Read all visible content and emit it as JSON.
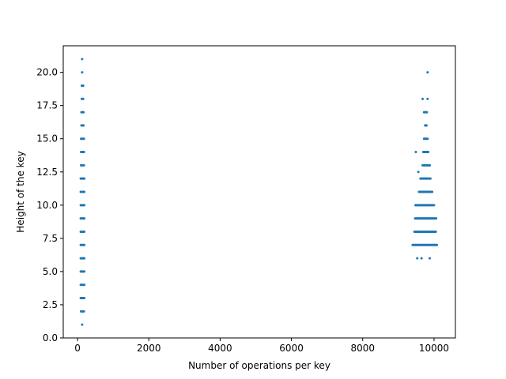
{
  "chart_data": {
    "type": "scatter",
    "xlabel": "Number of operations per key",
    "ylabel": "Height of the key",
    "xlim": [
      -400,
      10600
    ],
    "ylim": [
      0,
      22
    ],
    "xticks": [
      0,
      2000,
      4000,
      6000,
      8000,
      10000
    ],
    "xtick_labels": [
      "0",
      "2000",
      "4000",
      "6000",
      "8000",
      "10000"
    ],
    "yticks": [
      0,
      2.5,
      5,
      7.5,
      10,
      12.5,
      15,
      17.5,
      20
    ],
    "ytick_labels": [
      "0.0",
      "2.5",
      "5.0",
      "7.5",
      "10.0",
      "12.5",
      "15.0",
      "17.5",
      "20.0"
    ],
    "grid": false,
    "point_color": "#1f77b4",
    "series": [
      {
        "clusters": [
          {
            "y": 1,
            "x_min": 130,
            "x_max": 140
          },
          {
            "y": 2,
            "x_min": 100,
            "x_max": 180
          },
          {
            "y": 3,
            "x_min": 90,
            "x_max": 190
          },
          {
            "y": 4,
            "x_min": 90,
            "x_max": 190
          },
          {
            "y": 5,
            "x_min": 90,
            "x_max": 190
          },
          {
            "y": 6,
            "x_min": 90,
            "x_max": 190
          },
          {
            "y": 7,
            "x_min": 90,
            "x_max": 190
          },
          {
            "y": 8,
            "x_min": 90,
            "x_max": 190
          },
          {
            "y": 9,
            "x_min": 90,
            "x_max": 190
          },
          {
            "y": 10,
            "x_min": 90,
            "x_max": 190
          },
          {
            "y": 11,
            "x_min": 90,
            "x_max": 190
          },
          {
            "y": 12,
            "x_min": 90,
            "x_max": 190
          },
          {
            "y": 13,
            "x_min": 100,
            "x_max": 180
          },
          {
            "y": 14,
            "x_min": 100,
            "x_max": 180
          },
          {
            "y": 15,
            "x_min": 100,
            "x_max": 180
          },
          {
            "y": 16,
            "x_min": 110,
            "x_max": 170
          },
          {
            "y": 17,
            "x_min": 110,
            "x_max": 170
          },
          {
            "y": 18,
            "x_min": 120,
            "x_max": 160
          },
          {
            "y": 19,
            "x_min": 120,
            "x_max": 160
          },
          {
            "y": 20,
            "x_min": 130,
            "x_max": 150
          },
          {
            "y": 21,
            "x_min": 130,
            "x_max": 150
          },
          {
            "y": 6,
            "x_min": 9530,
            "x_max": 9530
          },
          {
            "y": 6,
            "x_min": 9650,
            "x_max": 9650
          },
          {
            "y": 6,
            "x_min": 9880,
            "x_max": 9880
          },
          {
            "y": 7,
            "x_min": 9400,
            "x_max": 10080
          },
          {
            "y": 8,
            "x_min": 9450,
            "x_max": 10050
          },
          {
            "y": 9,
            "x_min": 9470,
            "x_max": 10060
          },
          {
            "y": 10,
            "x_min": 9480,
            "x_max": 10000
          },
          {
            "y": 11,
            "x_min": 9580,
            "x_max": 9950
          },
          {
            "y": 12,
            "x_min": 9620,
            "x_max": 9900
          },
          {
            "y": 12.5,
            "x_min": 9560,
            "x_max": 9560
          },
          {
            "y": 13,
            "x_min": 9680,
            "x_max": 9880
          },
          {
            "y": 14,
            "x_min": 9490,
            "x_max": 9490
          },
          {
            "y": 14,
            "x_min": 9700,
            "x_max": 9840
          },
          {
            "y": 15,
            "x_min": 9720,
            "x_max": 9820
          },
          {
            "y": 16,
            "x_min": 9750,
            "x_max": 9790
          },
          {
            "y": 17,
            "x_min": 9720,
            "x_max": 9800
          },
          {
            "y": 18,
            "x_min": 9680,
            "x_max": 9680
          },
          {
            "y": 18,
            "x_min": 9820,
            "x_max": 9820
          },
          {
            "y": 20,
            "x_min": 9820,
            "x_max": 9820
          }
        ]
      }
    ]
  }
}
